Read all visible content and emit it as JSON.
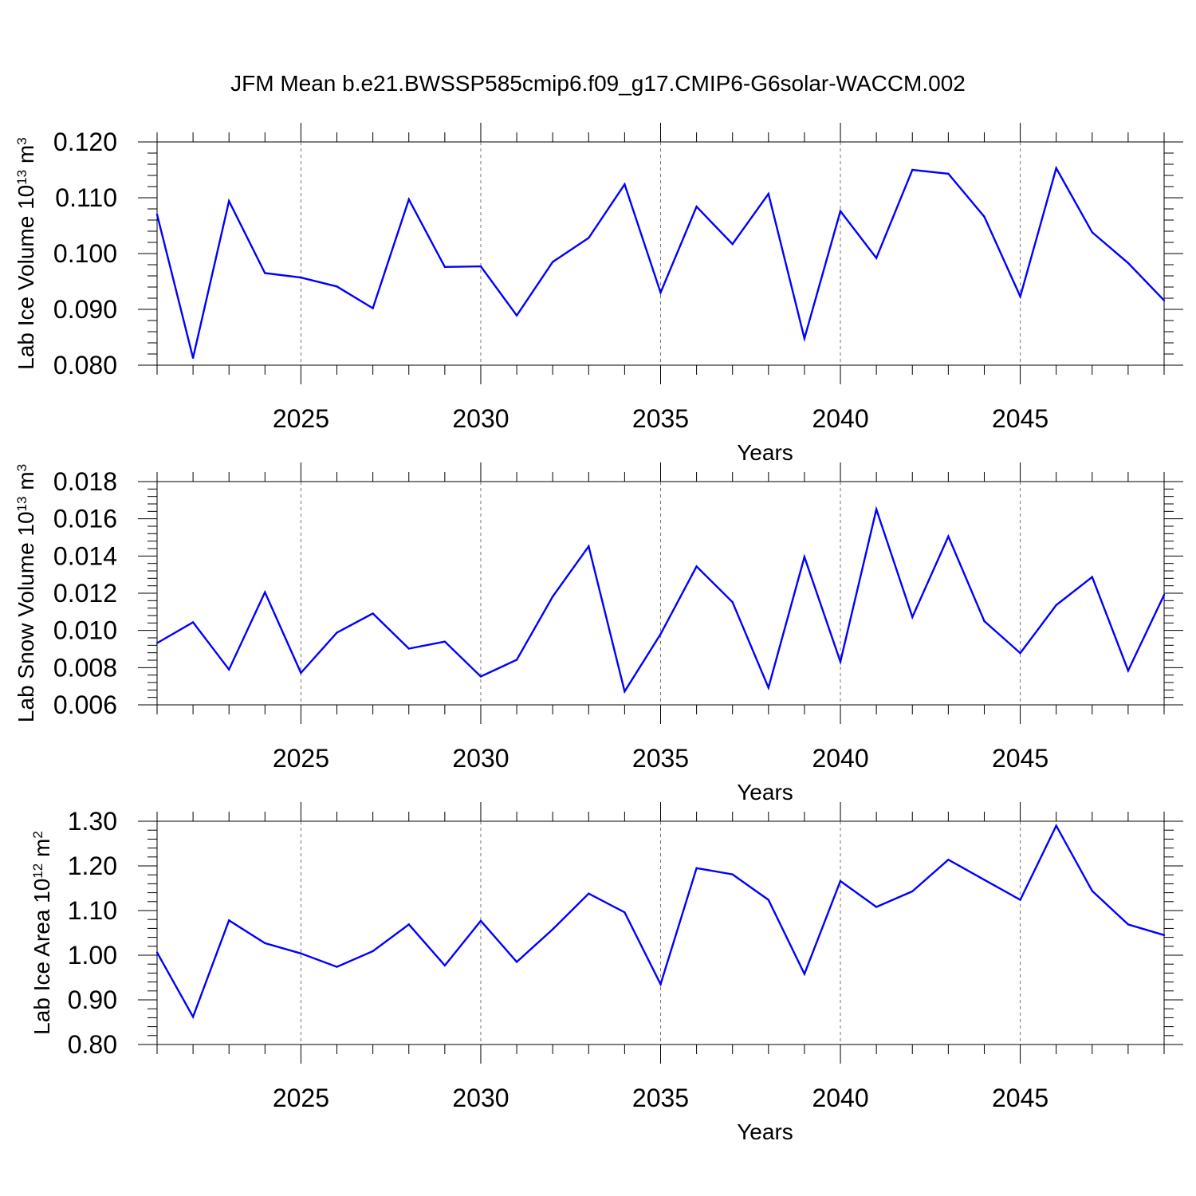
{
  "title": "JFM Mean b.e21.BWSSP585cmip6.f09_g17.CMIP6-G6solar-WACCM.002",
  "line_color": "#0000ff",
  "chart_data": [
    {
      "type": "line",
      "title": "JFM Mean b.e21.BWSSP585cmip6.f09_g17.CMIP6-G6solar-WACCM.002",
      "xlabel": "Years",
      "ylabel": {
        "text": "Lab Ice Volume 10",
        "exp": "13",
        "unit": " m",
        "unit_exp": "3"
      },
      "xlim": [
        2021,
        2049
      ],
      "ylim": [
        0.08,
        0.12
      ],
      "xticks": [
        2025,
        2030,
        2035,
        2040,
        2045
      ],
      "xtick_labels": [
        "2025",
        "2030",
        "2035",
        "2040",
        "2045"
      ],
      "yticks": [
        0.08,
        0.09,
        0.1,
        0.11,
        0.12
      ],
      "ytick_labels": [
        "0.080",
        "0.090",
        "0.100",
        "0.110",
        "0.120"
      ],
      "grid": "vertical dashed at major x ticks",
      "x": [
        2021,
        2022,
        2023,
        2024,
        2025,
        2026,
        2027,
        2028,
        2029,
        2030,
        2031,
        2032,
        2033,
        2034,
        2035,
        2036,
        2037,
        2038,
        2039,
        2040,
        2041,
        2042,
        2043,
        2044,
        2045,
        2046,
        2047,
        2048,
        2049
      ],
      "series": [
        {
          "values": [
            0.107,
            0.0813,
            0.1094,
            0.0965,
            0.0957,
            0.0941,
            0.0902,
            0.1097,
            0.0976,
            0.0977,
            0.0889,
            0.0985,
            0.1028,
            0.1124,
            0.093,
            0.1084,
            0.1017,
            0.1107,
            0.0848,
            0.1076,
            0.0992,
            0.115,
            0.1143,
            0.1066,
            0.0923,
            0.1153,
            0.1038,
            0.0983,
            0.0916
          ]
        }
      ]
    },
    {
      "type": "line",
      "xlabel": "Years",
      "ylabel": {
        "text": "Lab Snow Volume 10",
        "exp": "13",
        "unit": " m",
        "unit_exp": "3"
      },
      "xlim": [
        2021,
        2049
      ],
      "ylim": [
        0.006,
        0.018
      ],
      "xticks": [
        2025,
        2030,
        2035,
        2040,
        2045
      ],
      "xtick_labels": [
        "2025",
        "2030",
        "2035",
        "2040",
        "2045"
      ],
      "yticks": [
        0.006,
        0.008,
        0.01,
        0.012,
        0.014,
        0.016,
        0.018
      ],
      "ytick_labels": [
        "0.006",
        "0.008",
        "0.010",
        "0.012",
        "0.014",
        "0.016",
        "0.018"
      ],
      "grid": "vertical dashed at major x ticks",
      "x": [
        2021,
        2022,
        2023,
        2024,
        2025,
        2026,
        2027,
        2028,
        2029,
        2030,
        2031,
        2032,
        2033,
        2034,
        2035,
        2036,
        2037,
        2038,
        2039,
        2040,
        2041,
        2042,
        2043,
        2044,
        2045,
        2046,
        2047,
        2048,
        2049
      ],
      "series": [
        {
          "values": [
            0.00932,
            0.01044,
            0.0079,
            0.01205,
            0.00772,
            0.00988,
            0.01091,
            0.00902,
            0.0094,
            0.00752,
            0.00842,
            0.01182,
            0.01452,
            0.00672,
            0.0098,
            0.01344,
            0.01152,
            0.00692,
            0.01395,
            0.00832,
            0.01651,
            0.01072,
            0.01505,
            0.0105,
            0.00878,
            0.01136,
            0.01287,
            0.00784,
            0.01191
          ]
        }
      ]
    },
    {
      "type": "line",
      "xlabel": "Years",
      "ylabel": {
        "text": "Lab Ice Area 10",
        "exp": "12",
        "unit": " m",
        "unit_exp": "2"
      },
      "xlim": [
        2021,
        2049
      ],
      "ylim": [
        0.8,
        1.3
      ],
      "xticks": [
        2025,
        2030,
        2035,
        2040,
        2045
      ],
      "xtick_labels": [
        "2025",
        "2030",
        "2035",
        "2040",
        "2045"
      ],
      "yticks": [
        0.8,
        0.9,
        1.0,
        1.1,
        1.2,
        1.3
      ],
      "ytick_labels": [
        "0.80",
        "0.90",
        "1.00",
        "1.10",
        "1.20",
        "1.30"
      ],
      "grid": "vertical dashed at major x ticks",
      "x": [
        2021,
        2022,
        2023,
        2024,
        2025,
        2026,
        2027,
        2028,
        2029,
        2030,
        2031,
        2032,
        2033,
        2034,
        2035,
        2036,
        2037,
        2038,
        2039,
        2040,
        2041,
        2042,
        2043,
        2044,
        2045,
        2046,
        2047,
        2048,
        2049
      ],
      "series": [
        {
          "values": [
            1.006,
            0.862,
            1.078,
            1.027,
            1.004,
            0.974,
            1.009,
            1.069,
            0.977,
            1.077,
            0.985,
            1.058,
            1.138,
            1.096,
            0.935,
            1.195,
            1.181,
            1.124,
            0.958,
            1.166,
            1.108,
            1.143,
            1.214,
            1.169,
            1.124,
            1.29,
            1.144,
            1.069,
            1.045
          ]
        }
      ]
    }
  ]
}
